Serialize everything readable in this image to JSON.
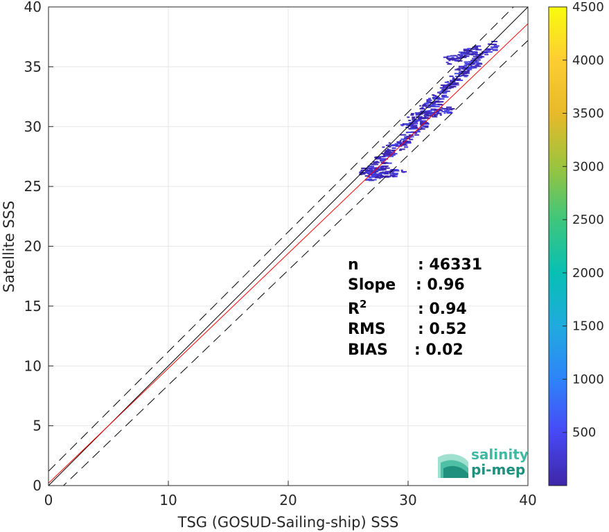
{
  "chart_data": {
    "type": "heatmap",
    "xlabel": "TSG (GOSUD-Sailing-ship) SSS",
    "ylabel": "Satellite SSS",
    "xlim": [
      0,
      40
    ],
    "ylim": [
      0,
      40
    ],
    "xticks": [
      "0",
      "10",
      "20",
      "30",
      "40"
    ],
    "yticks": [
      "0",
      "5",
      "10",
      "15",
      "20",
      "25",
      "30",
      "35",
      "40"
    ],
    "grid": true,
    "reference_lines": {
      "identity": {
        "slope": 1,
        "intercept": 0,
        "style": "solid",
        "color": "#000000"
      },
      "upper_dashed": {
        "slope": 1,
        "intercept": 1.2,
        "style": "dashed",
        "color": "#000000"
      },
      "lower_dashed": {
        "slope": 0.96,
        "intercept": -1.2,
        "style": "dashed",
        "color": "#000000"
      },
      "fit": {
        "slope": 0.96,
        "intercept": 0.2,
        "style": "solid",
        "color": "#ff0000"
      }
    },
    "density_segments": [
      {
        "x": [
          26.0,
          28.0
        ],
        "y": [
          26.2,
          26.8
        ]
      },
      {
        "x": [
          27.0,
          30.0
        ],
        "y": [
          27.0,
          29.0
        ]
      },
      {
        "x": [
          28.0,
          31.5
        ],
        "y": [
          28.0,
          30.5
        ]
      },
      {
        "x": [
          29.5,
          33.0
        ],
        "y": [
          29.8,
          32.8
        ]
      },
      {
        "x": [
          31.0,
          34.0
        ],
        "y": [
          31.5,
          34.0
        ]
      },
      {
        "x": [
          32.5,
          36.0
        ],
        "y": [
          33.0,
          35.8
        ]
      },
      {
        "x": [
          34.0,
          37.2
        ],
        "y": [
          34.5,
          37.0
        ]
      },
      {
        "x": [
          26.5,
          29.5
        ],
        "y": [
          25.8,
          26.3
        ]
      },
      {
        "x": [
          30.0,
          33.5
        ],
        "y": [
          30.8,
          31.5
        ]
      },
      {
        "x": [
          33.0,
          35.5
        ],
        "y": [
          35.5,
          36.5
        ]
      }
    ],
    "colorbar": {
      "range": [
        0,
        4500
      ],
      "ticks": [
        "500",
        "1000",
        "1500",
        "2000",
        "2500",
        "3000",
        "3500",
        "4000",
        "4500"
      ],
      "tick_values": [
        500,
        1000,
        1500,
        2000,
        2500,
        3000,
        3500,
        4000,
        4500
      ],
      "colormap": [
        "#3e26a8",
        "#4749f5",
        "#2e84fa",
        "#20abde",
        "#08bfb4",
        "#3ec67c",
        "#9bc43e",
        "#e8b929",
        "#fccd33",
        "#f9fb0e"
      ]
    },
    "stats": [
      {
        "label": "n",
        "value": ": 46331"
      },
      {
        "label": "Slope",
        "value": ": 0.96"
      },
      {
        "label": "R",
        "sup": "2",
        "value": ": 0.94"
      },
      {
        "label": "RMS",
        "value": ": 0.52"
      },
      {
        "label": "BIAS",
        "value": ": 0.02"
      }
    ]
  },
  "logo": {
    "line1": "salinity",
    "line2": "pi-mep",
    "color1": "#3fb9a2",
    "color2": "#1f8f7e"
  }
}
